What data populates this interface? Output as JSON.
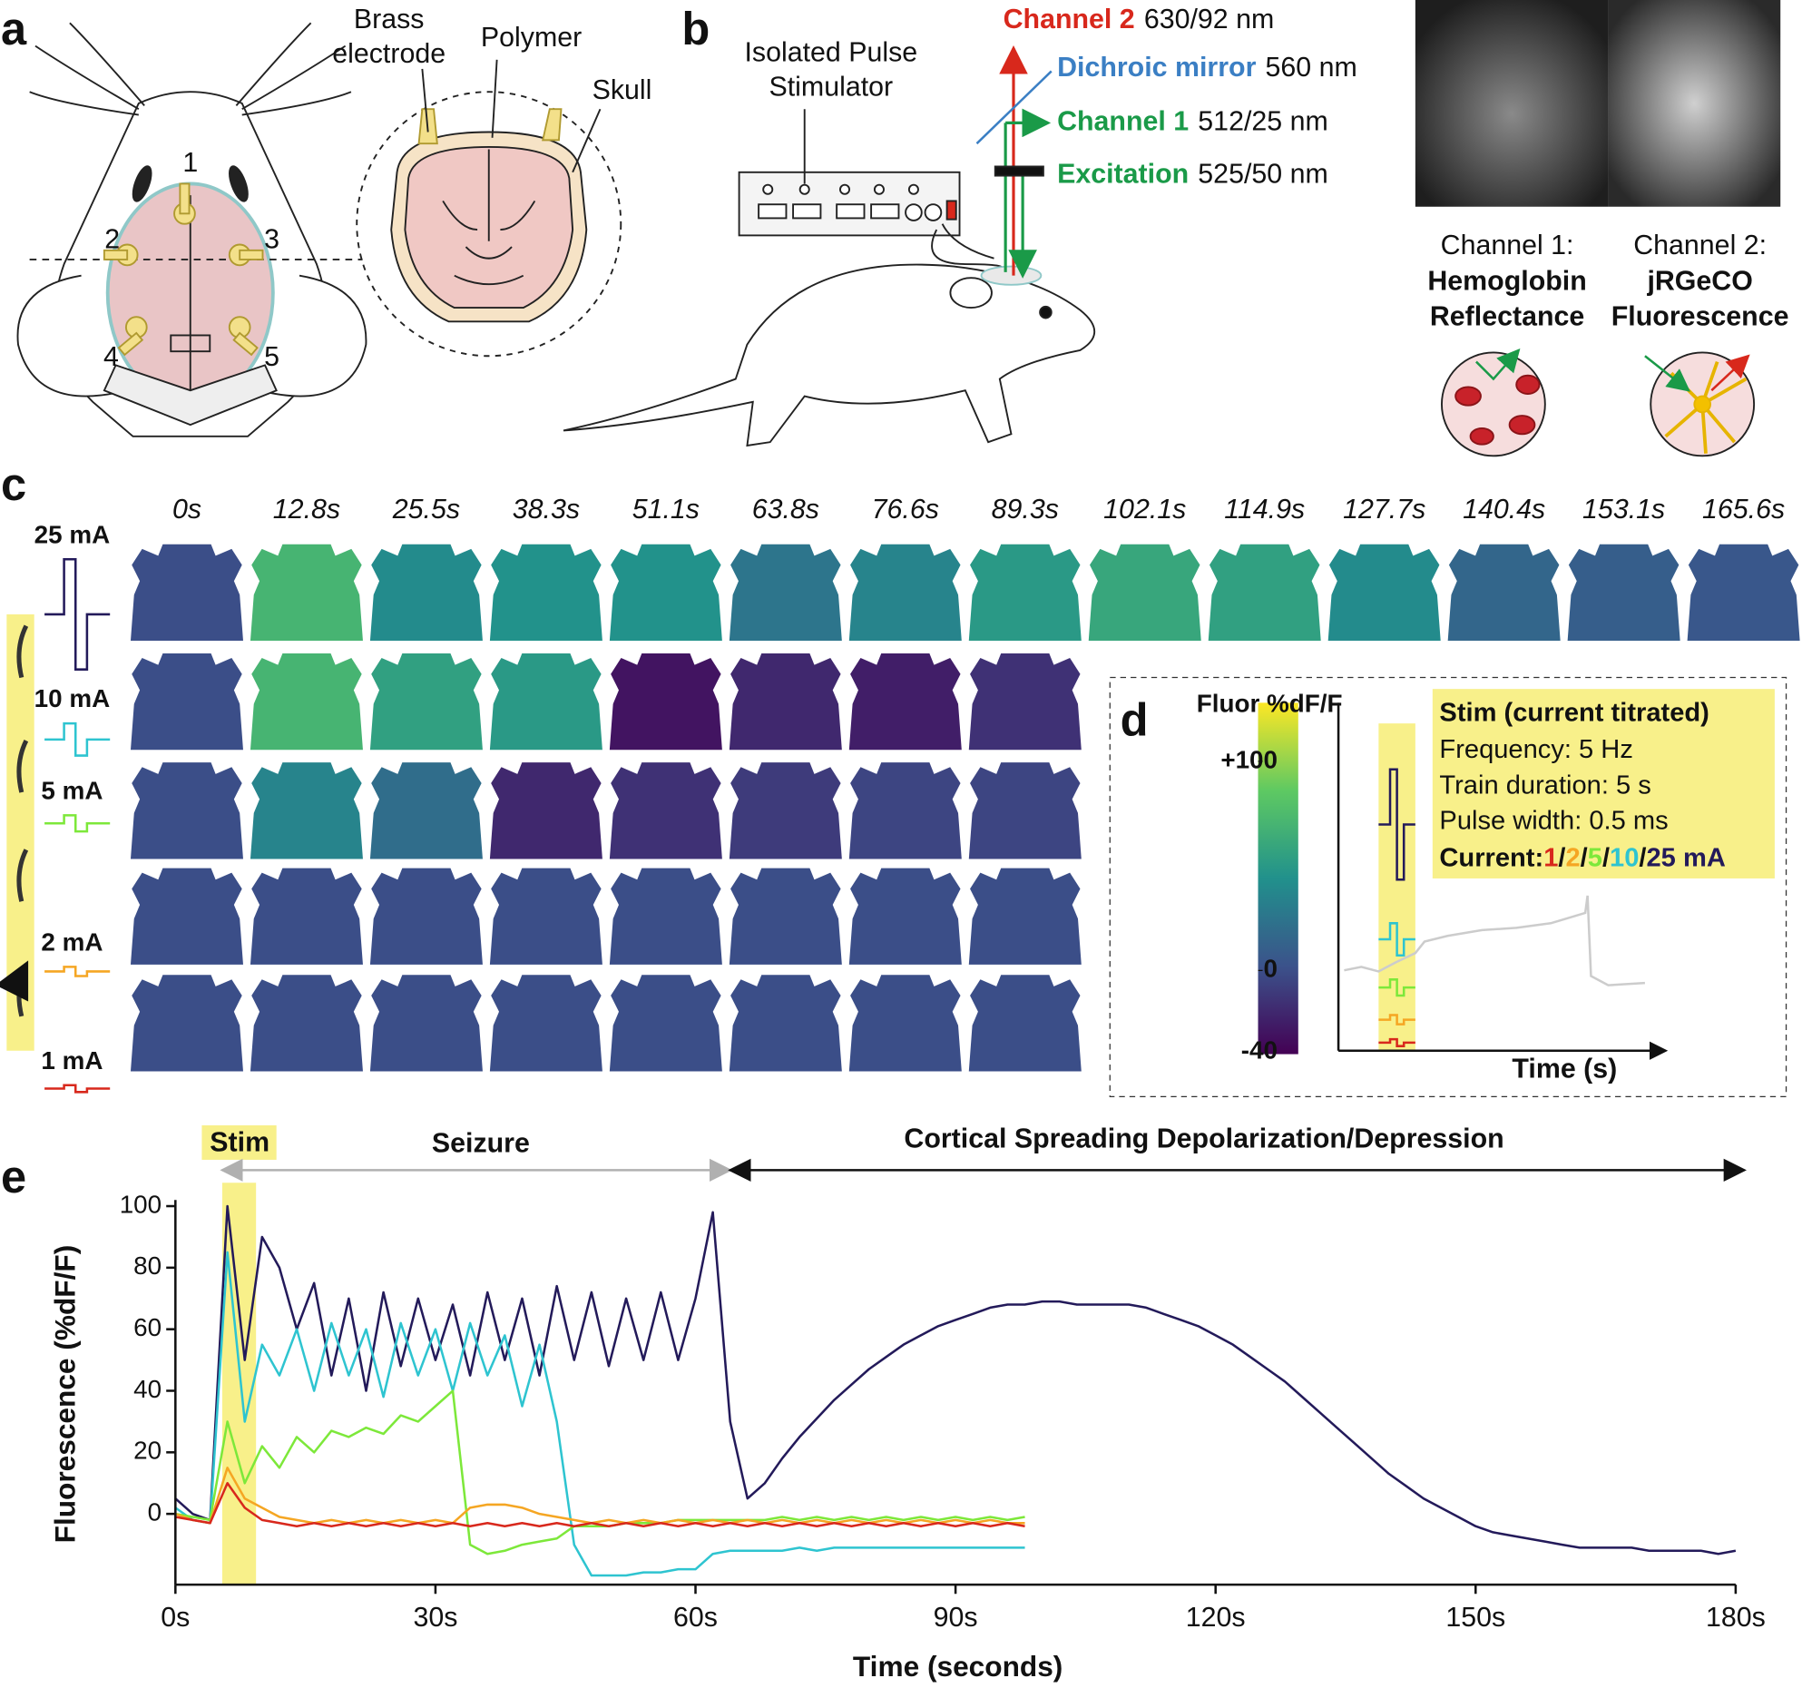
{
  "panel_labels": [
    "a",
    "b",
    "c",
    "d",
    "e"
  ],
  "panel_a": {
    "electrode_label": [
      "Brass",
      "electrode"
    ],
    "polymer_label": "Polymer",
    "skull_label": "Skull",
    "electrode_numbers": [
      "1",
      "2",
      "3",
      "4",
      "5"
    ]
  },
  "panel_b": {
    "stimulator_label": [
      "Isolated Pulse",
      "Stimulator"
    ],
    "optics": [
      {
        "name": "Channel 2",
        "spec": "630/92 nm",
        "color": "#d8281c"
      },
      {
        "name": "Dichroic mirror",
        "spec": "560 nm",
        "color": "#3b7fc4"
      },
      {
        "name": "Channel 1",
        "spec": "512/25 nm",
        "color": "#1a9a48"
      },
      {
        "name": "Excitation",
        "spec": "525/50 nm",
        "color": "#1a9a48"
      }
    ],
    "channels": [
      {
        "lines": [
          "Channel 1:",
          "Hemoglobin",
          "Reflectance"
        ],
        "color": "#1a9a48"
      },
      {
        "lines": [
          "Channel 2:",
          "jRGeCO",
          "Fluorescence"
        ],
        "color": "#d8281c"
      }
    ]
  },
  "panel_c": {
    "times": [
      "0s",
      "12.8s",
      "25.5s",
      "38.3s",
      "51.1s",
      "63.8s",
      "76.6s",
      "89.3s",
      "102.1s",
      "114.9s",
      "127.7s",
      "140.4s",
      "153.1s",
      "165.6s"
    ],
    "rows": [
      {
        "current": "25 mA",
        "color": "#231a5a",
        "intensity": [
          0,
          70,
          40,
          45,
          45,
          25,
          35,
          50,
          60,
          55,
          40,
          15,
          10,
          5
        ]
      },
      {
        "current": "10 mA",
        "color": "#2ec4d0",
        "intensity": [
          0,
          70,
          55,
          50,
          -30,
          -20,
          -25,
          -15
        ]
      },
      {
        "current": "5 mA",
        "color": "#7de83a",
        "intensity": [
          0,
          35,
          20,
          -20,
          -15,
          -10,
          -5,
          -5
        ]
      },
      {
        "current": "2 mA",
        "color": "#f5a623",
        "intensity": [
          0,
          0,
          0,
          0,
          0,
          0,
          0,
          0
        ]
      },
      {
        "current": "1 mA",
        "color": "#d8281c",
        "intensity": [
          0,
          0,
          0,
          0,
          0,
          0,
          0,
          0
        ]
      }
    ]
  },
  "panel_d": {
    "colorbar": {
      "title": "Fluor %dF/F",
      "lim": [
        -40,
        128
      ],
      "ticks": [
        {
          "value": 100,
          "label": "+100"
        },
        0,
        -40
      ]
    },
    "stim_box": {
      "title": "Stim (current titrated)",
      "lines": [
        "Frequency: 5 Hz",
        "Train duration: 5 s",
        "Pulse width: 0.5 ms"
      ],
      "current_label": "Current:",
      "separator": "/",
      "currents": [
        {
          "text": "1",
          "color": "#d8281c"
        },
        {
          "text": "2",
          "color": "#f5a623"
        },
        {
          "text": "5",
          "color": "#7de83a"
        },
        {
          "text": "10",
          "color": "#2ec4d0"
        },
        {
          "text": "25 mA",
          "color": "#231a5a"
        }
      ]
    },
    "x_axis_label": "Time (s)"
  },
  "chart_data": {
    "type": "line",
    "x_label": "Time (seconds)",
    "y_label": "Fluorescence (%dF/F)",
    "xlim": [
      0,
      180
    ],
    "ylim": [
      -23,
      102
    ],
    "xticks": [
      {
        "value": 0,
        "label": "0s"
      },
      {
        "value": 30,
        "label": "30s"
      },
      {
        "value": 60,
        "label": "60s"
      },
      {
        "value": 90,
        "label": "90s"
      },
      {
        "value": 120,
        "label": "120s"
      },
      {
        "value": 150,
        "label": "150s"
      },
      {
        "value": 180,
        "label": "180s"
      }
    ],
    "yticks": [
      0,
      20,
      40,
      60,
      80,
      100
    ],
    "stim_label": "Stim",
    "stim_span": [
      5.4,
      9.3
    ],
    "seizure_label": "Seizure",
    "seizure_span": [
      5.4,
      64
    ],
    "csd_label": "Cortical Spreading Depolarization/Depression",
    "csd_span": [
      64,
      181
    ],
    "x": [
      0,
      2,
      4,
      6,
      8,
      10,
      12,
      14,
      16,
      18,
      20,
      22,
      24,
      26,
      28,
      30,
      32,
      34,
      36,
      38,
      40,
      42,
      44,
      46,
      48,
      50,
      52,
      54,
      56,
      58,
      60,
      62,
      64,
      66,
      68,
      70,
      72,
      74,
      76,
      78,
      80,
      82,
      84,
      86,
      88,
      90,
      92,
      94,
      96,
      98,
      100,
      102,
      104,
      106,
      108,
      110,
      112,
      114,
      116,
      118,
      120,
      122,
      124,
      126,
      128,
      130,
      132,
      134,
      136,
      138,
      140,
      142,
      144,
      146,
      148,
      150,
      152,
      154,
      156,
      158,
      160,
      162,
      164,
      166,
      168,
      170,
      172,
      174,
      176,
      178,
      180
    ],
    "series": [
      {
        "color": "#231a5a",
        "values": [
          5,
          0,
          -2,
          100,
          50,
          90,
          80,
          60,
          75,
          45,
          70,
          40,
          72,
          48,
          70,
          50,
          68,
          45,
          72,
          50,
          70,
          45,
          74,
          50,
          72,
          48,
          70,
          50,
          72,
          50,
          70,
          98,
          30,
          5,
          10,
          18,
          25,
          31,
          37,
          42,
          47,
          51,
          55,
          58,
          61,
          63,
          65,
          67,
          68,
          68,
          69,
          69,
          68,
          68,
          68,
          68,
          67,
          65,
          63,
          61,
          58,
          55,
          51,
          47,
          43,
          38,
          33,
          28,
          23,
          18,
          13,
          9,
          5,
          2,
          -1,
          -4,
          -6,
          -7,
          -8,
          -9,
          -10,
          -11,
          -11,
          -11,
          -11,
          -12,
          -12,
          -12,
          -12,
          -13,
          -12
        ]
      },
      {
        "color": "#2ec4d0",
        "values": [
          2,
          -2,
          -3,
          85,
          30,
          55,
          45,
          60,
          40,
          62,
          45,
          60,
          38,
          62,
          45,
          60,
          40,
          62,
          45,
          58,
          35,
          55,
          30,
          -10,
          -20,
          -20,
          -20,
          -19,
          -19,
          -18,
          -18,
          -13,
          -12,
          -12,
          -12,
          -12,
          -11,
          -12,
          -11,
          -11,
          -11,
          -11,
          -11,
          -11,
          -11,
          -11,
          -11,
          -11,
          -11,
          -11,
          null,
          null,
          null,
          null,
          null,
          null,
          null,
          null,
          null,
          null,
          null,
          null,
          null,
          null,
          null,
          null,
          null,
          null,
          null,
          null,
          null,
          null,
          null,
          null,
          null,
          null,
          null,
          null,
          null,
          null,
          null,
          null,
          null,
          null,
          null,
          null,
          null,
          null,
          null,
          null,
          null
        ]
      },
      {
        "color": "#7de83a",
        "values": [
          0,
          -1,
          -2,
          30,
          10,
          22,
          15,
          25,
          20,
          27,
          25,
          28,
          26,
          32,
          30,
          35,
          40,
          -10,
          -13,
          -12,
          -10,
          -9,
          -8,
          -4,
          -4,
          -4,
          -3,
          -3,
          -3,
          -2,
          -2,
          -2,
          -2,
          -2,
          -2,
          -1,
          -2,
          -1,
          -2,
          -1,
          -2,
          -1,
          -2,
          -1,
          -2,
          -1,
          -2,
          -1,
          -2,
          -1,
          null,
          null,
          null,
          null,
          null,
          null,
          null,
          null,
          null,
          null,
          null,
          null,
          null,
          null,
          null,
          null,
          null,
          null,
          null,
          null,
          null,
          null,
          null,
          null,
          null,
          null,
          null,
          null,
          null,
          null,
          null,
          null,
          null,
          null,
          null,
          null,
          null,
          null,
          null,
          null,
          null
        ]
      },
      {
        "color": "#f5a623",
        "values": [
          0,
          -2,
          -3,
          15,
          5,
          2,
          -1,
          -2,
          -3,
          -2,
          -3,
          -2,
          -3,
          -2,
          -3,
          -2,
          -3,
          2,
          3,
          3,
          2,
          0,
          -1,
          -2,
          -3,
          -2,
          -3,
          -2,
          -3,
          -2,
          -3,
          -2,
          -3,
          -2,
          -3,
          -2,
          -3,
          -2,
          -3,
          -2,
          -3,
          -2,
          -3,
          -2,
          -3,
          -2,
          -3,
          -2,
          -3,
          -3,
          null,
          null,
          null,
          null,
          null,
          null,
          null,
          null,
          null,
          null,
          null,
          null,
          null,
          null,
          null,
          null,
          null,
          null,
          null,
          null,
          null,
          null,
          null,
          null,
          null,
          null,
          null,
          null,
          null,
          null,
          null,
          null,
          null,
          null,
          null,
          null,
          null,
          null,
          null,
          null,
          null
        ]
      },
      {
        "color": "#d8281c",
        "values": [
          -1,
          -2,
          -3,
          10,
          2,
          -2,
          -3,
          -4,
          -3,
          -4,
          -3,
          -4,
          -3,
          -4,
          -3,
          -4,
          -3,
          -4,
          -3,
          -4,
          -3,
          -4,
          -3,
          -4,
          -3,
          -4,
          -3,
          -4,
          -3,
          -4,
          -3,
          -4,
          -3,
          -4,
          -3,
          -4,
          -3,
          -4,
          -3,
          -4,
          -3,
          -4,
          -3,
          -4,
          -3,
          -4,
          -3,
          -4,
          -3,
          -4,
          null,
          null,
          null,
          null,
          null,
          null,
          null,
          null,
          null,
          null,
          null,
          null,
          null,
          null,
          null,
          null,
          null,
          null,
          null,
          null,
          null,
          null,
          null,
          null,
          null,
          null,
          null,
          null,
          null,
          null,
          null,
          null,
          null,
          null,
          null,
          null,
          null,
          null,
          null,
          null,
          null
        ]
      }
    ]
  }
}
